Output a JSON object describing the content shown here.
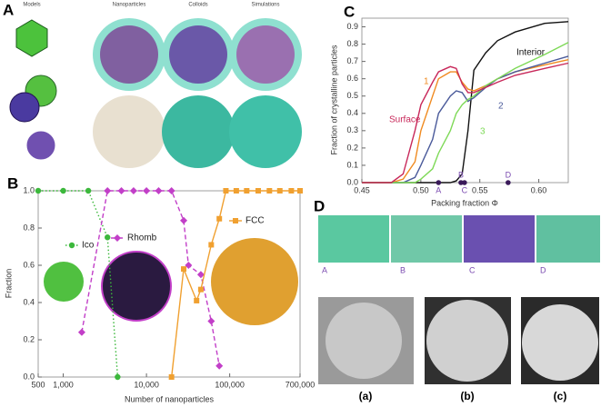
{
  "panels": {
    "A": {
      "label": "A",
      "headers": [
        "Models",
        "Nanoparticles",
        "Colloids",
        "Simulations"
      ]
    },
    "D": {
      "label": "D",
      "sim_labels": [
        "A",
        "B",
        "C",
        "D"
      ],
      "sem_labels": [
        "(a)",
        "(b)",
        "(c)"
      ]
    }
  },
  "chart_data": [
    {
      "type": "line",
      "panel": "B",
      "xlabel": "Number of nanoparticles",
      "ylabel": "Fraction",
      "xlog": true,
      "xlim": [
        500,
        700000
      ],
      "ylim": [
        0,
        1
      ],
      "xticks": [
        500,
        {
          "value": 1000,
          "label": "1,000"
        },
        {
          "value": 10000,
          "label": "10,000"
        },
        {
          "value": 100000,
          "label": "100,000"
        },
        {
          "value": 700000,
          "label": "700,000"
        }
      ],
      "yticks": [
        {
          "value": 0,
          "label": "0.0"
        },
        0.2,
        0.4,
        0.6,
        0.8,
        {
          "value": 1,
          "label": "1.0"
        }
      ],
      "series": [
        {
          "name": "Ico",
          "color": "#3cb83c",
          "linestyle": "dotted",
          "marker": "circle",
          "x": [
            500,
            1000,
            2000,
            3400,
            4500
          ],
          "values": [
            1,
            1,
            1,
            0.75,
            0
          ]
        },
        {
          "name": "Rhomb",
          "color": "#c23fc8",
          "linestyle": "dashed",
          "marker": "diamond",
          "x": [
            1670,
            3400,
            5000,
            7000,
            10000,
            14000,
            20000,
            28000,
            32000,
            45000,
            60000,
            75000
          ],
          "values": [
            0.24,
            1,
            1,
            1,
            1,
            1,
            1,
            0.84,
            0.6,
            0.55,
            0.3,
            0.06
          ]
        },
        {
          "name": "FCC",
          "color": "#f0a030",
          "linestyle": "solid",
          "marker": "square",
          "x": [
            20000,
            28000,
            40000,
            45000,
            60000,
            75000,
            90000,
            120000,
            160000,
            220000,
            300000,
            400000,
            550000,
            700000
          ],
          "values": [
            0,
            0.58,
            0.41,
            0.47,
            0.71,
            0.85,
            1,
            1,
            1,
            1,
            1,
            1,
            1,
            1
          ]
        }
      ]
    },
    {
      "type": "line",
      "panel": "C",
      "xlabel": "Packing fraction Φ",
      "ylabel": "Fraction of crystalline particles",
      "xlim": [
        0.45,
        0.625
      ],
      "ylim": [
        0,
        0.95
      ],
      "xticks": [
        0.45,
        {
          "value": 0.5,
          "label": "0.50"
        },
        0.55,
        {
          "value": 0.6,
          "label": "0.60"
        }
      ],
      "yticks": [
        {
          "value": 0,
          "label": "0.0"
        },
        0.1,
        0.2,
        0.3,
        0.4,
        0.5,
        0.6,
        0.7,
        0.8,
        0.9
      ],
      "x": [
        0.45,
        0.475,
        0.485,
        0.495,
        0.5,
        0.51,
        0.515,
        0.525,
        0.53,
        0.535,
        0.54,
        0.545,
        0.555,
        0.565,
        0.58,
        0.605,
        0.625
      ],
      "series": [
        {
          "name": "Interior",
          "color": "#111111",
          "linestyle": "solid",
          "values": [
            0,
            0,
            0,
            0,
            0,
            0,
            0,
            0,
            0.01,
            0.05,
            0.3,
            0.65,
            0.75,
            0.82,
            0.87,
            0.92,
            0.93
          ]
        },
        {
          "name": "1",
          "color": "#f08a20",
          "linestyle": "solid",
          "values": [
            0,
            0,
            0.02,
            0.12,
            0.3,
            0.5,
            0.6,
            0.64,
            0.64,
            0.58,
            0.54,
            0.53,
            0.56,
            0.6,
            0.64,
            0.68,
            0.71
          ]
        },
        {
          "name": "2",
          "color": "#4a5a9a",
          "linestyle": "solid",
          "values": [
            0,
            0,
            0,
            0.03,
            0.1,
            0.25,
            0.4,
            0.5,
            0.53,
            0.52,
            0.47,
            0.49,
            0.55,
            0.6,
            0.64,
            0.69,
            0.73
          ]
        },
        {
          "name": "3",
          "color": "#7ed957",
          "linestyle": "solid",
          "values": [
            0,
            0,
            0,
            0,
            0.02,
            0.08,
            0.17,
            0.3,
            0.4,
            0.45,
            0.48,
            0.5,
            0.56,
            0.6,
            0.66,
            0.74,
            0.81
          ]
        },
        {
          "name": "Surface",
          "color": "#c8285a",
          "linestyle": "solid",
          "values": [
            0,
            0,
            0.05,
            0.3,
            0.45,
            0.58,
            0.64,
            0.67,
            0.66,
            0.57,
            0.52,
            0.52,
            0.55,
            0.58,
            0.62,
            0.66,
            0.69
          ]
        }
      ],
      "points": {
        "color": "#3a1a5a",
        "labels": [
          "A",
          "B",
          "C",
          "D"
        ],
        "x": [
          0.515,
          0.534,
          0.537,
          0.574
        ],
        "values": [
          0,
          0,
          0,
          0
        ]
      }
    }
  ]
}
